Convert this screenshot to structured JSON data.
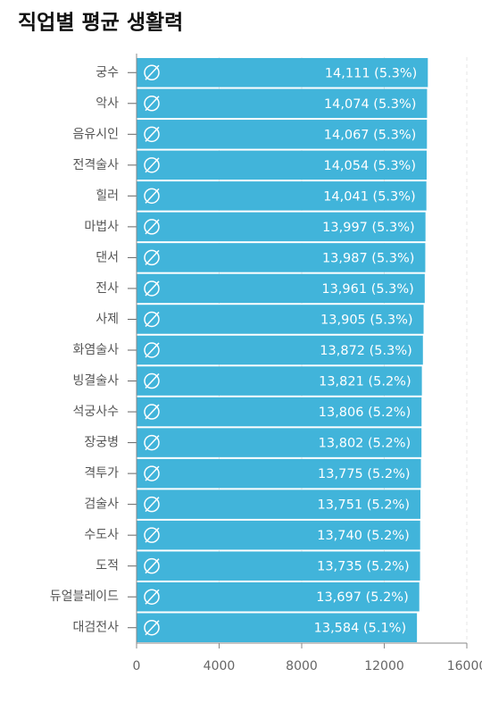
{
  "chart_data": {
    "type": "barh",
    "title": "직업별 평균 생활력",
    "categories": [
      "궁수",
      "악사",
      "음유시인",
      "전격술사",
      "힐러",
      "마법사",
      "댄서",
      "전사",
      "사제",
      "화염술사",
      "빙결술사",
      "석궁사수",
      "장궁병",
      "격투가",
      "검술사",
      "수도사",
      "도적",
      "듀얼블레이드",
      "대검전사"
    ],
    "values": [
      14111,
      14074,
      14067,
      14054,
      14041,
      13997,
      13987,
      13961,
      13905,
      13872,
      13821,
      13806,
      13802,
      13775,
      13751,
      13740,
      13735,
      13697,
      13584
    ],
    "value_labels": [
      "14,111 (5.3%)",
      "14,074 (5.3%)",
      "14,067 (5.3%)",
      "14,054 (5.3%)",
      "14,041 (5.3%)",
      "13,997 (5.3%)",
      "13,987 (5.3%)",
      "13,961 (5.3%)",
      "13,905 (5.3%)",
      "13,872 (5.3%)",
      "13,821 (5.2%)",
      "13,806 (5.2%)",
      "13,802 (5.2%)",
      "13,775 (5.2%)",
      "13,751 (5.2%)",
      "13,740 (5.2%)",
      "13,735 (5.2%)",
      "13,697 (5.2%)",
      "13,584 (5.1%)"
    ],
    "color": "#41b4da",
    "xlim": [
      0,
      16000
    ],
    "xticks": [
      0,
      4000,
      8000,
      12000,
      16000
    ],
    "grid": true
  }
}
